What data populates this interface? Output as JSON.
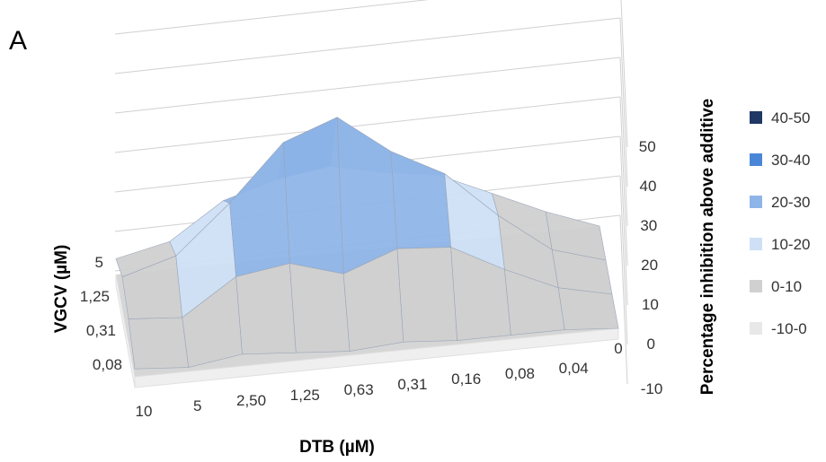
{
  "panel_label": "A",
  "chart_data": {
    "type": "surface",
    "xlabel": "DTB (µM)",
    "ylabel": "VGCV (µM)",
    "zlabel": "Percentage inhibition above additive",
    "x_categories": [
      "10",
      "5",
      "2,50",
      "1,25",
      "0,63",
      "0,31",
      "0,16",
      "0,08",
      "0,04",
      "0"
    ],
    "y_categories": [
      "0,08",
      "0,31",
      "1,25",
      "5"
    ],
    "z_ticks": [
      "-10",
      "0",
      "10",
      "20",
      "30",
      "40",
      "50"
    ],
    "zlim": [
      -10,
      50
    ],
    "legend_position": "right",
    "legend": [
      {
        "label": "40-50",
        "color": "#1f3864"
      },
      {
        "label": "30-40",
        "color": "#4a86d8"
      },
      {
        "label": "20-30",
        "color": "#8fb5e8"
      },
      {
        "label": "10-20",
        "color": "#cfe0f6"
      },
      {
        "label": "0-10",
        "color": "#d0d0d0"
      },
      {
        "label": "-10-0",
        "color": "#e8e8e8"
      }
    ],
    "series": [
      {
        "values": [
          2,
          1,
          3,
          2,
          1,
          2,
          1,
          1,
          1,
          0
        ]
      },
      {
        "values": [
          6,
          5,
          14,
          16,
          12,
          17,
          16,
          9,
          3,
          0
        ]
      },
      {
        "values": [
          8,
          12,
          24,
          38,
          43,
          33,
          26,
          14,
          4,
          0
        ]
      },
      {
        "values": [
          4,
          7,
          16,
          20,
          22,
          19,
          17,
          11,
          5,
          0
        ]
      }
    ]
  }
}
